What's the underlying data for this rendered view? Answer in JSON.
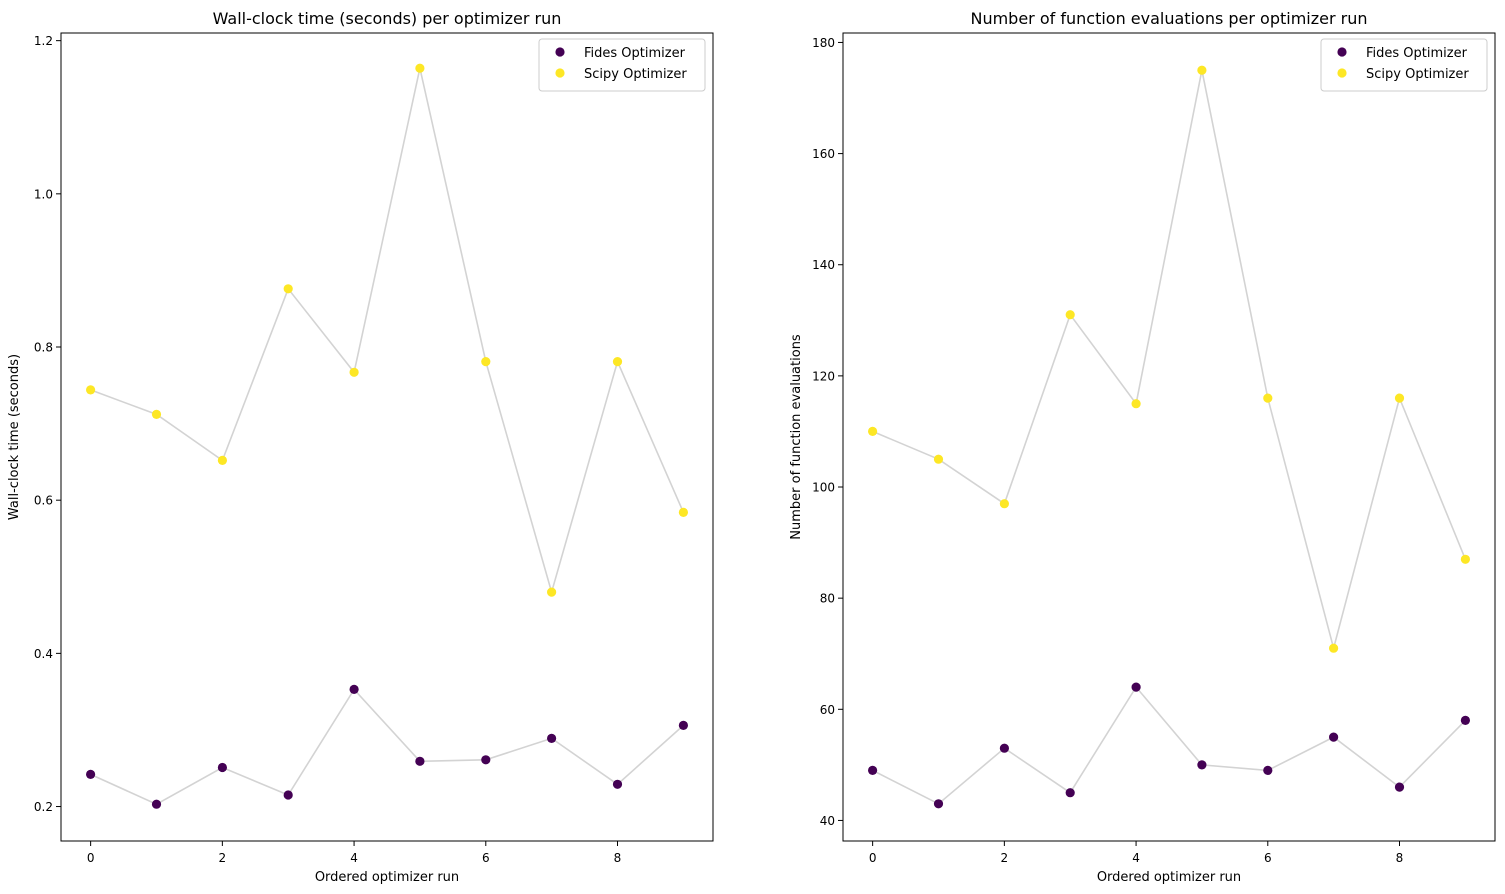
{
  "chart_data": [
    {
      "type": "scatter",
      "title": "Wall-clock time (seconds) per optimizer run",
      "xlabel": "Ordered optimizer run",
      "ylabel": "Wall-clock time (seconds)",
      "xlim": [
        -0.45,
        9.45
      ],
      "ylim": [
        0.155,
        1.21
      ],
      "xticks": [
        0,
        2,
        4,
        6,
        8
      ],
      "yticks": [
        0.2,
        0.4,
        0.6,
        0.8,
        1.0,
        1.2
      ],
      "ytick_labels": [
        "0.2",
        "0.4",
        "0.6",
        "0.8",
        "1.0",
        "1.2"
      ],
      "legend_position": "top-right",
      "connector_color": "#d3d3d3",
      "series": [
        {
          "name": "Fides Optimizer",
          "color": "#440154",
          "x": [
            0,
            1,
            2,
            3,
            4,
            5,
            6,
            7,
            8,
            9
          ],
          "y": [
            0.242,
            0.203,
            0.251,
            0.215,
            0.353,
            0.259,
            0.261,
            0.289,
            0.229,
            0.306
          ]
        },
        {
          "name": "Scipy Optimizer",
          "color": "#fde725",
          "x": [
            0,
            1,
            2,
            3,
            4,
            5,
            6,
            7,
            8,
            9
          ],
          "y": [
            0.744,
            0.712,
            0.652,
            0.876,
            0.767,
            1.164,
            0.781,
            0.48,
            0.781,
            0.584
          ]
        }
      ]
    },
    {
      "type": "scatter",
      "title": "Number of function evaluations per optimizer run",
      "xlabel": "Ordered optimizer run",
      "ylabel": "Number of function evaluations",
      "xlim": [
        -0.45,
        9.45
      ],
      "ylim": [
        36.3,
        181.7
      ],
      "xticks": [
        0,
        2,
        4,
        6,
        8
      ],
      "yticks": [
        40,
        60,
        80,
        100,
        120,
        140,
        160,
        180
      ],
      "ytick_labels": [
        "40",
        "60",
        "80",
        "100",
        "120",
        "140",
        "160",
        "180"
      ],
      "legend_position": "top-right",
      "connector_color": "#d3d3d3",
      "series": [
        {
          "name": "Fides Optimizer",
          "color": "#440154",
          "x": [
            0,
            1,
            2,
            3,
            4,
            5,
            6,
            7,
            8,
            9
          ],
          "y": [
            49,
            43,
            53,
            45,
            64,
            50,
            49,
            55,
            46,
            58
          ]
        },
        {
          "name": "Scipy Optimizer",
          "color": "#fde725",
          "x": [
            0,
            1,
            2,
            3,
            4,
            5,
            6,
            7,
            8,
            9
          ],
          "y": [
            110,
            105,
            97,
            131,
            115,
            175,
            116,
            71,
            116,
            87
          ]
        }
      ]
    }
  ]
}
